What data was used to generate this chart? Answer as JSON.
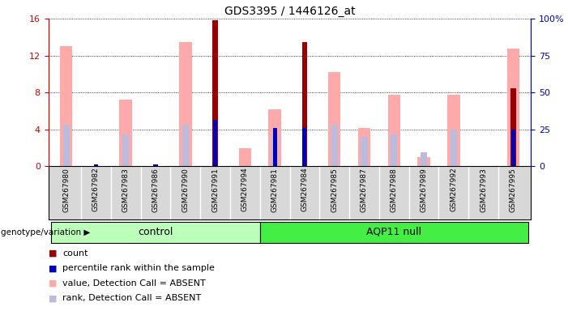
{
  "title": "GDS3395 / 1446126_at",
  "samples": [
    "GSM267980",
    "GSM267982",
    "GSM267983",
    "GSM267986",
    "GSM267990",
    "GSM267991",
    "GSM267994",
    "GSM267981",
    "GSM267984",
    "GSM267985",
    "GSM267987",
    "GSM267988",
    "GSM267989",
    "GSM267992",
    "GSM267993",
    "GSM267995"
  ],
  "n_control": 7,
  "count": [
    0,
    0,
    0,
    0,
    0,
    15.8,
    0,
    0,
    13.5,
    0,
    0,
    0,
    0,
    0,
    0,
    8.5
  ],
  "percentile_rank": [
    0,
    0.25,
    0,
    0.2,
    0,
    5.0,
    0,
    4.2,
    4.2,
    0,
    0,
    0,
    0,
    0,
    0,
    4.0
  ],
  "value_absent": [
    13.0,
    0,
    7.2,
    0,
    13.5,
    0,
    2.0,
    6.2,
    0,
    10.2,
    4.2,
    7.8,
    1.0,
    7.8,
    0,
    12.8
  ],
  "rank_absent": [
    4.5,
    0,
    3.5,
    0,
    4.5,
    0,
    0,
    3.2,
    0,
    4.5,
    3.2,
    3.5,
    1.5,
    4.0,
    0,
    0
  ],
  "ylim_left": [
    0,
    16
  ],
  "ylim_right": [
    0,
    100
  ],
  "yticks_left": [
    0,
    4,
    8,
    12,
    16
  ],
  "yticks_right": [
    0,
    25,
    50,
    75,
    100
  ],
  "left_axis_color": "#cc0000",
  "right_axis_color": "#0000cc",
  "bar_color_count": "#990000",
  "bar_color_rank": "#0000bb",
  "bar_color_value_absent": "#ffaaaa",
  "bar_color_rank_absent": "#bbbbdd",
  "group_control_color": "#bbffbb",
  "group_aqp11_color": "#44ee44",
  "bg_color": "#d8d8d8",
  "legend_items": [
    {
      "color": "#990000",
      "label": "count"
    },
    {
      "color": "#0000bb",
      "label": "percentile rank within the sample"
    },
    {
      "color": "#ffaaaa",
      "label": "value, Detection Call = ABSENT"
    },
    {
      "color": "#bbbbdd",
      "label": "rank, Detection Call = ABSENT"
    }
  ]
}
